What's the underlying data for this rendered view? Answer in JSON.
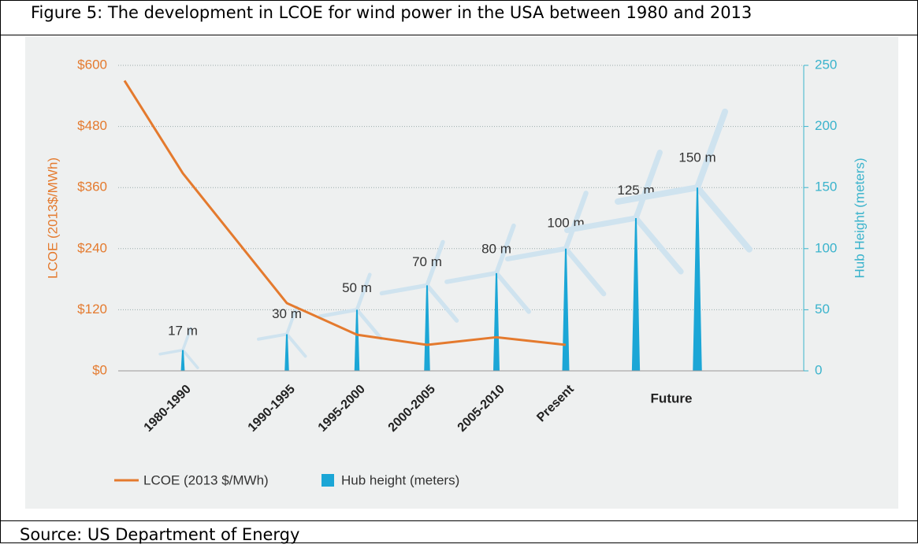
{
  "caption": "Figure 5: The development in LCOE for wind power in the USA between 1980 and 2013",
  "source": "Source: US Department of Energy",
  "chart_data": {
    "type": "combo",
    "categories": [
      null,
      "1980-1990",
      "1990-1995",
      "1995-2000",
      "2000-2005",
      "2005-2010",
      "Present",
      null,
      null
    ],
    "future_label": "Future",
    "series": [
      {
        "name": "LCOE (2013 $/MWh)",
        "type": "line",
        "color": "#e47a2e",
        "axis": "y",
        "values": [
          570,
          388,
          133,
          71,
          51,
          66,
          51,
          null,
          null
        ]
      },
      {
        "name": "Hub height (meters)",
        "type": "bar",
        "color": "#1ba6d6",
        "axis": "y2",
        "values": [
          null,
          17,
          30,
          50,
          70,
          80,
          100,
          125,
          150
        ],
        "value_labels": [
          null,
          "17 m",
          "30 m",
          "50 m",
          "70 m",
          "80 m",
          "100 m",
          "125 m",
          "150 m"
        ]
      }
    ],
    "ylabel": "LCOE (2013$/MWh)",
    "y2label": "Hub Height (meters)",
    "ylim": [
      0,
      600
    ],
    "yticks": [
      {
        "value": 0,
        "label": "$0"
      },
      {
        "value": 120,
        "label": "$120"
      },
      {
        "value": 240,
        "label": "$240"
      },
      {
        "value": 360,
        "label": "$360"
      },
      {
        "value": 480,
        "label": "$480"
      },
      {
        "value": 600,
        "label": "$600"
      }
    ],
    "y2lim": [
      0,
      250
    ],
    "y2ticks": [
      0,
      50,
      100,
      150,
      200,
      250
    ],
    "grid": true
  }
}
